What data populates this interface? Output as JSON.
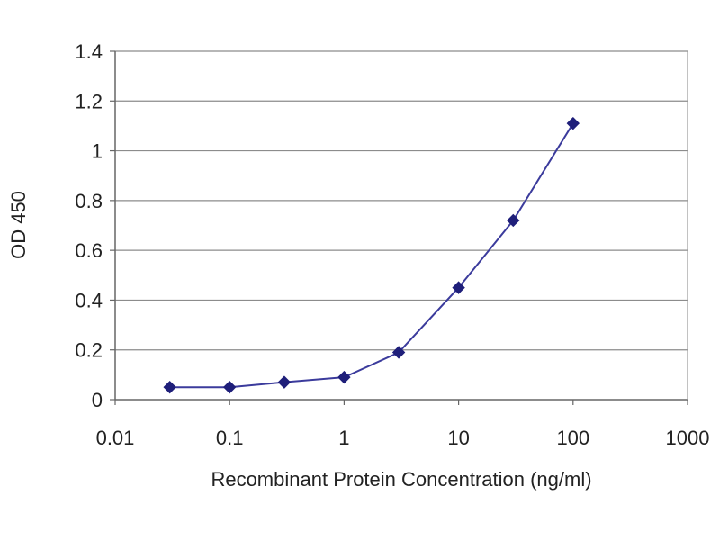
{
  "chart_data": {
    "type": "line",
    "xlabel": "Recombinant Protein Concentration (ng/ml)",
    "ylabel": "OD 450",
    "x_scale": "log",
    "xlim": [
      0.01,
      1000
    ],
    "ylim": [
      0,
      1.4
    ],
    "x_ticks": [
      0.01,
      0.1,
      1,
      10,
      100,
      1000
    ],
    "x_tick_labels": [
      "0.01",
      "0.1",
      "1",
      "10",
      "100",
      "1000"
    ],
    "y_ticks": [
      0,
      0.2,
      0.4,
      0.6,
      0.8,
      1,
      1.2,
      1.4
    ],
    "y_tick_labels": [
      "0",
      "0.2",
      "0.4",
      "0.6",
      "0.8",
      "1",
      "1.2",
      "1.4"
    ],
    "grid": "horizontal",
    "series": [
      {
        "x": [
          0.03,
          0.1,
          0.3,
          1,
          3,
          10,
          30,
          100
        ],
        "y": [
          0.05,
          0.05,
          0.07,
          0.09,
          0.19,
          0.45,
          0.72,
          1.11
        ],
        "color": "#3b3b9c",
        "marker": "diamond"
      }
    ]
  }
}
